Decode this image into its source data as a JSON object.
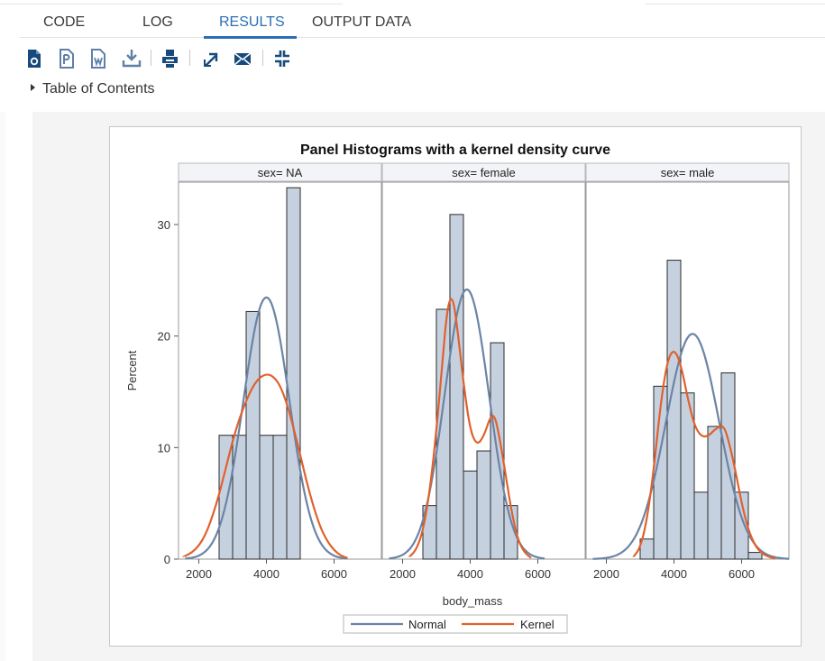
{
  "tabs": [
    {
      "label": "CODE"
    },
    {
      "label": "LOG"
    },
    {
      "label": "RESULTS"
    },
    {
      "label": "OUTPUT DATA"
    }
  ],
  "active_tab": "RESULTS",
  "toolbar": [
    {
      "name": "open-html-icon",
      "interactable": true
    },
    {
      "name": "download-pdf-icon",
      "interactable": true
    },
    {
      "name": "download-word-icon",
      "interactable": true
    },
    {
      "name": "download-icon",
      "interactable": true
    },
    {
      "name": "print-icon",
      "interactable": true
    },
    {
      "name": "open-in-new-window-icon",
      "interactable": true
    },
    {
      "name": "email-icon",
      "interactable": true
    },
    {
      "name": "collapse-icon",
      "interactable": true
    }
  ],
  "toc": {
    "label": "Table of Contents"
  },
  "chart_data": {
    "type": "bar",
    "title": "Panel Histograms with a kernel density curve",
    "xlabel": "body_mass",
    "ylabel": "Percent",
    "xlim": [
      1400,
      7400
    ],
    "ylim": [
      0,
      33.8
    ],
    "xticks": [
      2000,
      4000,
      6000
    ],
    "yticks": [
      0,
      10,
      20,
      30
    ],
    "grid": false,
    "legend": {
      "position": "bottom",
      "entries": [
        {
          "name": "Normal",
          "color": "#6b84a6"
        },
        {
          "name": "Kernel",
          "color": "#e0612d"
        }
      ]
    },
    "colors": {
      "bar_fill": "#c6d1e0",
      "bar_stroke": "#2b2b2b",
      "normal": "#6b84a6",
      "kernel": "#e0612d"
    },
    "panels": [
      {
        "label": "sex= NA",
        "bins": [
          {
            "x0": 2600,
            "x1": 3000,
            "value": 11.1
          },
          {
            "x0": 3000,
            "x1": 3400,
            "value": 11.1
          },
          {
            "x0": 3400,
            "x1": 3800,
            "value": 22.2
          },
          {
            "x0": 3800,
            "x1": 4200,
            "value": 11.1
          },
          {
            "x0": 4200,
            "x1": 4600,
            "value": 11.1
          },
          {
            "x0": 4600,
            "x1": 5000,
            "value": 33.3
          }
        ],
        "normal": {
          "mean": 4000,
          "sd": 680,
          "x_range": [
            1600,
            6400
          ]
        },
        "kernel": {
          "points": [
            [
              1550,
              0.2
            ],
            [
              1800,
              0.6
            ],
            [
              2000,
              1.2
            ],
            [
              2200,
              2.2
            ],
            [
              2400,
              3.8
            ],
            [
              2600,
              5.8
            ],
            [
              2800,
              8.2
            ],
            [
              3000,
              10.6
            ],
            [
              3200,
              12.6
            ],
            [
              3400,
              14.2
            ],
            [
              3600,
              15.5
            ],
            [
              3800,
              16.3
            ],
            [
              4000,
              16.6
            ],
            [
              4200,
              16.4
            ],
            [
              4400,
              15.6
            ],
            [
              4600,
              14.0
            ],
            [
              4800,
              11.8
            ],
            [
              5000,
              9.3
            ],
            [
              5200,
              6.8
            ],
            [
              5400,
              4.6
            ],
            [
              5600,
              2.8
            ],
            [
              5800,
              1.6
            ],
            [
              6000,
              0.8
            ],
            [
              6200,
              0.3
            ],
            [
              6400,
              0.1
            ]
          ]
        }
      },
      {
        "label": "sex= female",
        "bins": [
          {
            "x0": 2600,
            "x1": 3000,
            "value": 4.8
          },
          {
            "x0": 3000,
            "x1": 3400,
            "value": 22.4
          },
          {
            "x0": 3400,
            "x1": 3800,
            "value": 30.9
          },
          {
            "x0": 3800,
            "x1": 4200,
            "value": 7.9
          },
          {
            "x0": 4200,
            "x1": 4600,
            "value": 9.7
          },
          {
            "x0": 4600,
            "x1": 5000,
            "value": 19.4
          },
          {
            "x0": 5000,
            "x1": 5400,
            "value": 4.8
          }
        ],
        "normal": {
          "mean": 3900,
          "sd": 660,
          "x_range": [
            1600,
            6200
          ]
        },
        "kernel": {
          "points": [
            [
              2200,
              0.2
            ],
            [
              2400,
              0.8
            ],
            [
              2600,
              2.5
            ],
            [
              2800,
              6.0
            ],
            [
              3000,
              11.5
            ],
            [
              3200,
              18.5
            ],
            [
              3300,
              21.8
            ],
            [
              3400,
              23.4
            ],
            [
              3500,
              23.2
            ],
            [
              3600,
              21.2
            ],
            [
              3800,
              15.8
            ],
            [
              4000,
              11.5
            ],
            [
              4200,
              10.2
            ],
            [
              4400,
              11.0
            ],
            [
              4600,
              12.8
            ],
            [
              4700,
              12.9
            ],
            [
              4800,
              12.0
            ],
            [
              5000,
              8.5
            ],
            [
              5200,
              4.6
            ],
            [
              5400,
              1.8
            ],
            [
              5600,
              0.6
            ],
            [
              5800,
              0.1
            ]
          ]
        }
      },
      {
        "label": "sex= male",
        "bins": [
          {
            "x0": 3000,
            "x1": 3400,
            "value": 1.8
          },
          {
            "x0": 3400,
            "x1": 3800,
            "value": 15.5
          },
          {
            "x0": 3800,
            "x1": 4200,
            "value": 26.8
          },
          {
            "x0": 4200,
            "x1": 4600,
            "value": 14.9
          },
          {
            "x0": 4600,
            "x1": 5000,
            "value": 6.0
          },
          {
            "x0": 5000,
            "x1": 5400,
            "value": 11.9
          },
          {
            "x0": 5400,
            "x1": 5800,
            "value": 16.7
          },
          {
            "x0": 5800,
            "x1": 6200,
            "value": 6.0
          },
          {
            "x0": 6200,
            "x1": 6600,
            "value": 0.6
          }
        ],
        "normal": {
          "mean": 4550,
          "sd": 790,
          "x_range": [
            1600,
            7400
          ]
        },
        "kernel": {
          "points": [
            [
              2800,
              0.2
            ],
            [
              3000,
              1.0
            ],
            [
              3200,
              3.5
            ],
            [
              3400,
              8.0
            ],
            [
              3600,
              13.8
            ],
            [
              3800,
              17.8
            ],
            [
              4000,
              18.9
            ],
            [
              4200,
              17.5
            ],
            [
              4400,
              14.5
            ],
            [
              4600,
              12.0
            ],
            [
              4800,
              11.0
            ],
            [
              5000,
              11.0
            ],
            [
              5200,
              11.6
            ],
            [
              5400,
              12.0
            ],
            [
              5500,
              11.7
            ],
            [
              5600,
              10.8
            ],
            [
              5800,
              8.2
            ],
            [
              6000,
              5.0
            ],
            [
              6200,
              2.6
            ],
            [
              6400,
              1.2
            ],
            [
              6600,
              0.5
            ],
            [
              6800,
              0.2
            ],
            [
              7000,
              0.05
            ]
          ]
        }
      }
    ]
  }
}
